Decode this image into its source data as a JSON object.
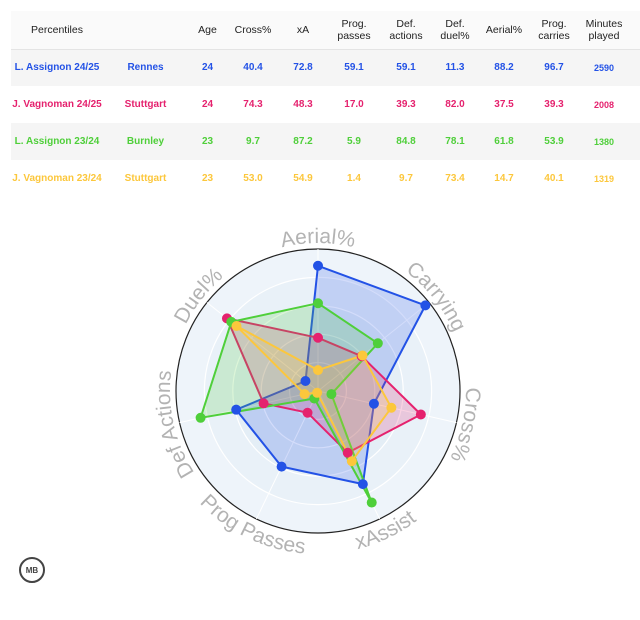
{
  "table": {
    "headers": [
      "Percentiles",
      "",
      "Age",
      "Cross%",
      "xA",
      "Prog.\npasses",
      "Def.\nactions",
      "Def.\nduel%",
      "Aerial%",
      "Prog.\ncarries",
      "Minutes\nplayed",
      ""
    ],
    "close_symbol": "x",
    "rows": [
      {
        "player": "L. Assignon 24/25",
        "team": "Rennes",
        "age": "24",
        "cross": "40.4",
        "xa": "72.8",
        "prog_passes": "59.1",
        "def_actions": "59.1",
        "def_duel": "11.3",
        "aerial": "88.2",
        "prog_carries": "96.7",
        "minutes": "2590",
        "color": "#2352e6"
      },
      {
        "player": "J. Vagnoman 24/25",
        "team": "Stuttgart",
        "age": "24",
        "cross": "74.3",
        "xa": "48.3",
        "prog_passes": "17.0",
        "def_actions": "39.3",
        "def_duel": "82.0",
        "aerial": "37.5",
        "prog_carries": "39.3",
        "minutes": "2008",
        "color": "#e5226e"
      },
      {
        "player": "L. Assignon 23/24",
        "team": "Burnley",
        "age": "23",
        "cross": "9.7",
        "xa": "87.2",
        "prog_passes": "5.9",
        "def_actions": "84.8",
        "def_duel": "78.1",
        "aerial": "61.8",
        "prog_carries": "53.9",
        "minutes": "1380",
        "color": "#4fcf3a"
      },
      {
        "player": "J. Vagnoman 23/24",
        "team": "Stuttgart",
        "age": "23",
        "cross": "53.0",
        "xa": "54.9",
        "prog_passes": "1.4",
        "def_actions": "9.7",
        "def_duel": "73.4",
        "aerial": "14.7",
        "prog_carries": "40.1",
        "minutes": "1319",
        "color": "#fcc73c"
      }
    ]
  },
  "chart_data": {
    "type": "radar",
    "axes": [
      "Aerial%",
      "Carrying",
      "Cross%",
      "xAssist",
      "Prog Passes",
      "Def Actions",
      "Duel%"
    ],
    "range": [
      0,
      100
    ],
    "series": [
      {
        "name": "L. Assignon 24/25",
        "color": "#2352e6",
        "values": [
          88.2,
          96.7,
          40.4,
          72.8,
          59.1,
          59.1,
          11.3
        ]
      },
      {
        "name": "J. Vagnoman 24/25",
        "color": "#e5226e",
        "values": [
          37.5,
          39.3,
          74.3,
          48.3,
          17.0,
          39.3,
          82.0
        ]
      },
      {
        "name": "L. Assignon 23/24",
        "color": "#4fcf3a",
        "values": [
          61.8,
          53.9,
          9.7,
          87.2,
          5.9,
          84.8,
          78.1
        ]
      },
      {
        "name": "J. Vagnoman 23/24",
        "color": "#fcc73c",
        "values": [
          14.7,
          40.1,
          53.0,
          54.9,
          1.4,
          9.7,
          73.4
        ]
      }
    ]
  },
  "logo": {
    "text": "MB",
    "icon": "mb-logo-icon"
  }
}
